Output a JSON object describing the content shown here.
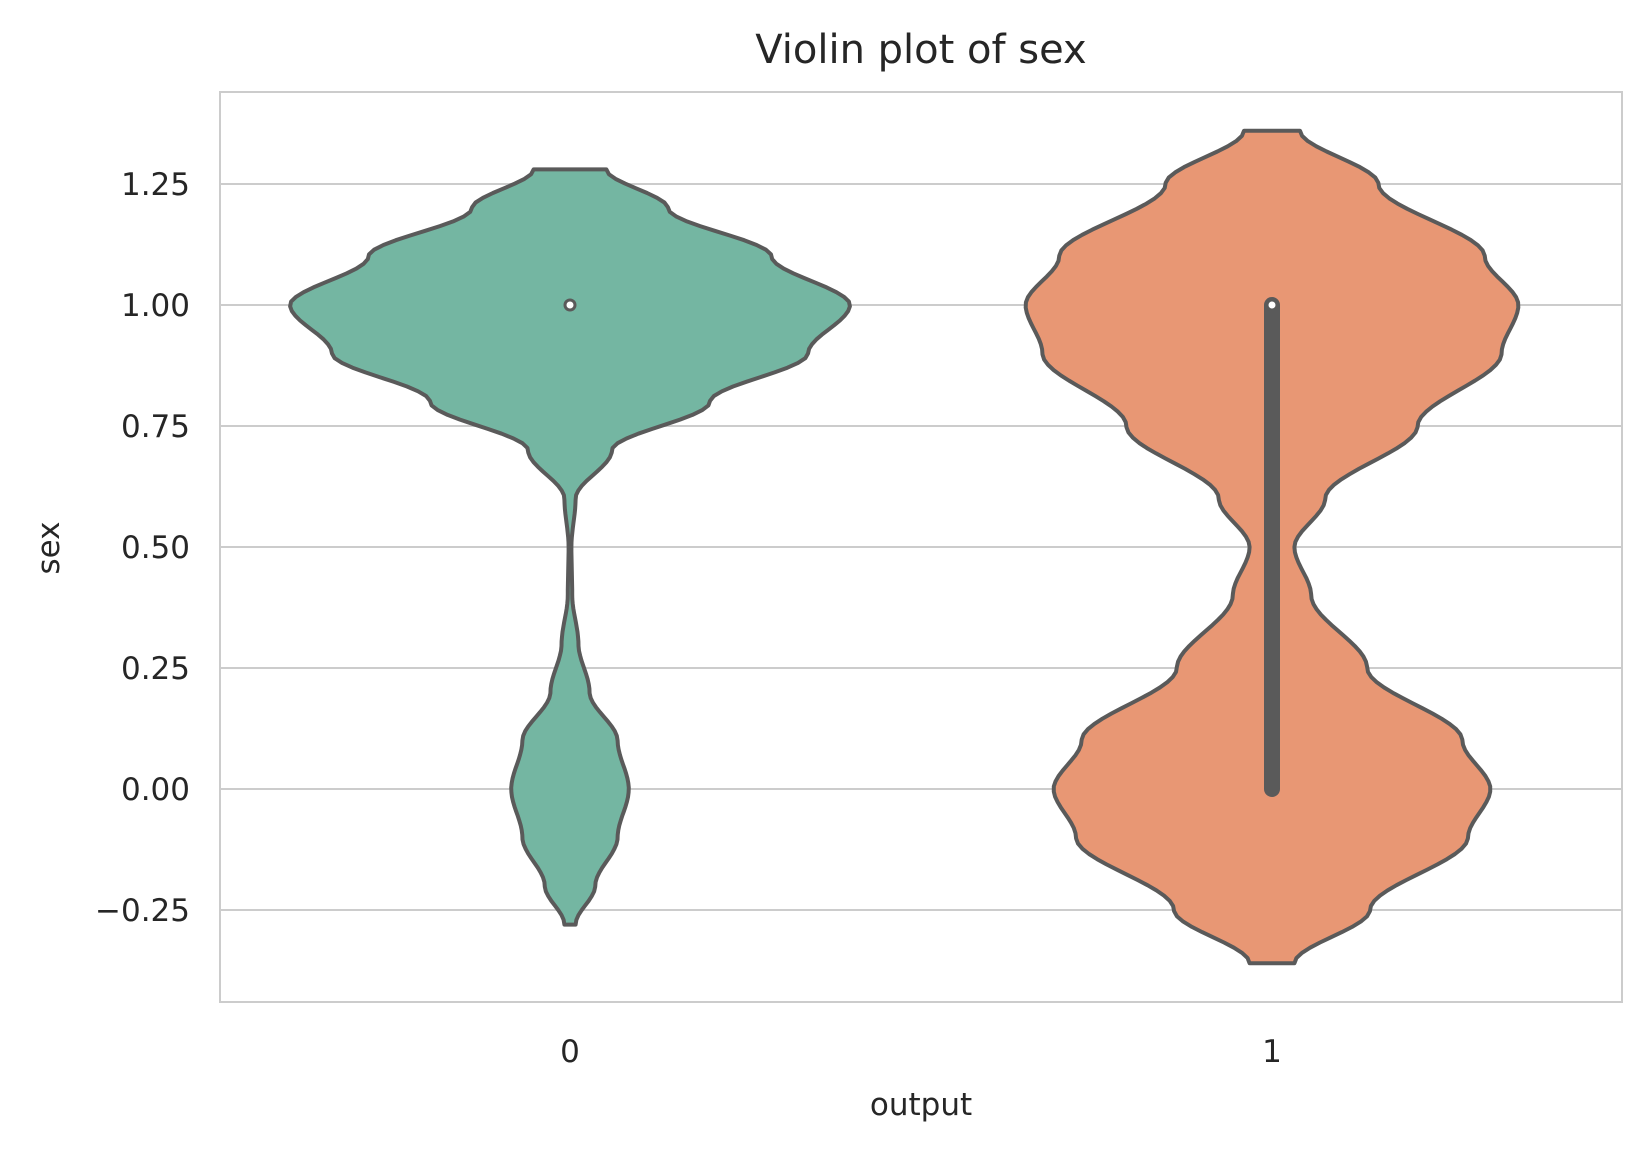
{
  "chart_data": {
    "type": "violin",
    "title": "Violin plot of sex",
    "xlabel": "output",
    "ylabel": "sex",
    "categories": [
      "0",
      "1"
    ],
    "ylim": [
      -0.44,
      1.44
    ],
    "yticks": [
      -0.25,
      0.0,
      0.25,
      0.5,
      0.75,
      1.0,
      1.25
    ],
    "ytick_labels": [
      "−0.25",
      "0.00",
      "0.25",
      "0.50",
      "0.75",
      "1.00",
      "1.25"
    ],
    "grid": "horizontal",
    "colors": {
      "0": "#74b6a2",
      "1": "#e89774",
      "outline": "#5a5a5a",
      "grid": "#cccccc",
      "frame": "#cccccc"
    },
    "violins": [
      {
        "category": "0",
        "y_min": -0.28,
        "y_max": 1.28,
        "median": 1.0,
        "q1": 1.0,
        "q3": 1.0,
        "density_profile": [
          [
            -0.28,
            0.02
          ],
          [
            -0.2,
            0.09
          ],
          [
            -0.1,
            0.17
          ],
          [
            0.0,
            0.21
          ],
          [
            0.1,
            0.17
          ],
          [
            0.2,
            0.07
          ],
          [
            0.3,
            0.03
          ],
          [
            0.4,
            0.008
          ],
          [
            0.5,
            0.005
          ],
          [
            0.6,
            0.02
          ],
          [
            0.7,
            0.15
          ],
          [
            0.8,
            0.5
          ],
          [
            0.9,
            0.85
          ],
          [
            1.0,
            1.0
          ],
          [
            1.1,
            0.72
          ],
          [
            1.2,
            0.35
          ],
          [
            1.28,
            0.13
          ]
        ]
      },
      {
        "category": "1",
        "y_min": -0.36,
        "y_max": 1.36,
        "median": 1.0,
        "q1": 0.0,
        "q3": 1.0,
        "density_profile": [
          [
            -0.36,
            0.08
          ],
          [
            -0.25,
            0.35
          ],
          [
            -0.1,
            0.7
          ],
          [
            0.0,
            0.78
          ],
          [
            0.1,
            0.68
          ],
          [
            0.25,
            0.34
          ],
          [
            0.4,
            0.14
          ],
          [
            0.5,
            0.08
          ],
          [
            0.6,
            0.19
          ],
          [
            0.75,
            0.52
          ],
          [
            0.9,
            0.82
          ],
          [
            1.0,
            0.88
          ],
          [
            1.1,
            0.76
          ],
          [
            1.25,
            0.38
          ],
          [
            1.36,
            0.1
          ]
        ]
      }
    ]
  }
}
